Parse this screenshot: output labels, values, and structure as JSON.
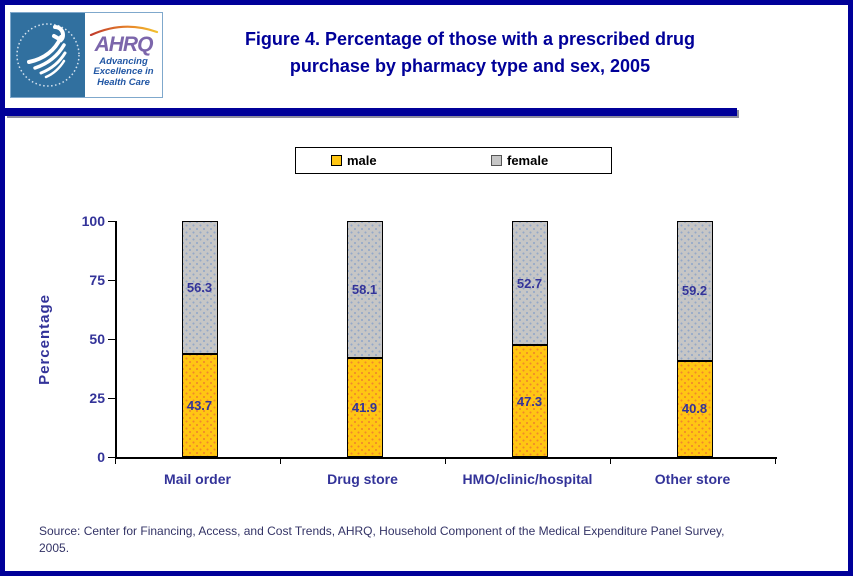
{
  "page": {
    "border_color": "#000099",
    "accent_color": "#000099"
  },
  "header": {
    "logo": {
      "ahrq_acronym": "AHRQ",
      "tagline_line1": "Advancing",
      "tagline_line2": "Excellence in",
      "tagline_line3": "Health Care"
    },
    "title_line1": "Figure 4. Percentage of those with a prescribed drug",
    "title_line2": "purchase by pharmacy type and sex, 2005"
  },
  "legend": {
    "items": [
      {
        "label": "male",
        "color": "#FFC613",
        "border": "#000000"
      },
      {
        "label": "female",
        "color": "#C6C6C6",
        "border": "#555555"
      }
    ]
  },
  "chart_data": {
    "type": "bar",
    "stacked": true,
    "title": "Figure 4. Percentage of those with a prescribed drug purchase by pharmacy type and sex, 2005",
    "categories": [
      "Mail order",
      "Drug store",
      "HMO/clinic/hospital",
      "Other store"
    ],
    "series": [
      {
        "name": "male",
        "color": "#FFC613",
        "dot_color": "#F0882C",
        "values": [
          43.7,
          41.9,
          47.3,
          40.8
        ]
      },
      {
        "name": "female",
        "color": "#C6C6C6",
        "dot_color": "#94A8C8",
        "values": [
          56.3,
          58.1,
          52.7,
          59.2
        ]
      }
    ],
    "xlabel": "",
    "ylabel": "Percentage",
    "ylim": [
      0,
      100
    ],
    "yticks": [
      0,
      25,
      50,
      75,
      100
    ],
    "grid": false,
    "legend_position": "top",
    "value_label_color": "#333399",
    "axis_text_color": "#333399"
  },
  "source": {
    "line1": "Source: Center for Financing, Access, and Cost Trends, AHRQ, Household Component of the Medical Expenditure Panel Survey,",
    "line2": "2005."
  }
}
